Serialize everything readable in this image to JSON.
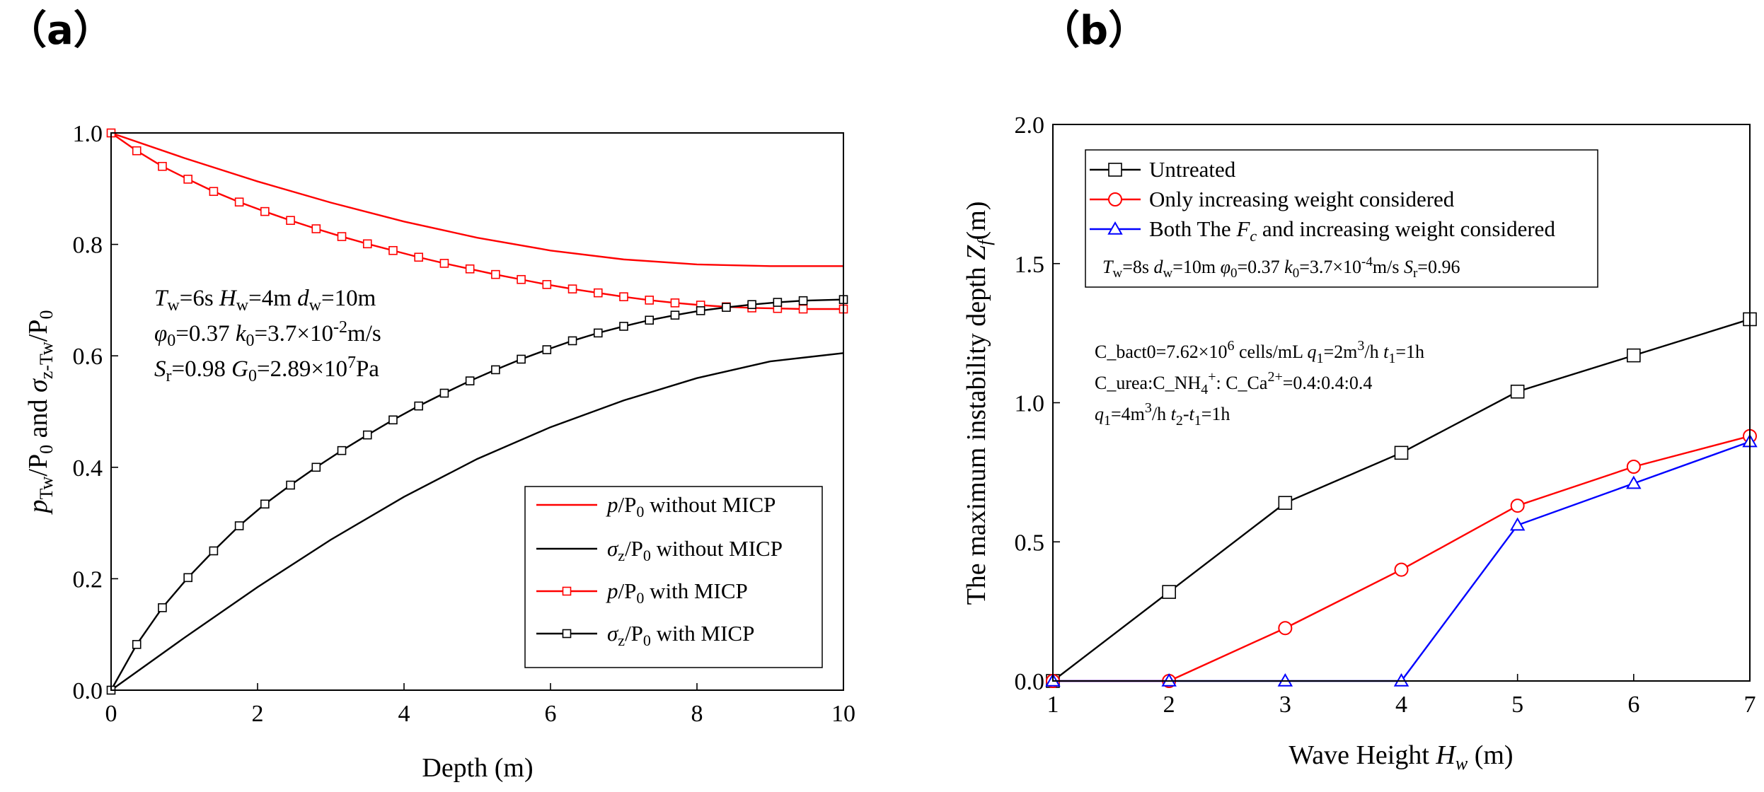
{
  "chart_data": [
    {
      "panel_label": "（a）",
      "type": "line",
      "xlabel": "Depth (m)",
      "ylabel": "p_Tw/P_0 and σ_z-Tw/P_0",
      "xlim": [
        0,
        10
      ],
      "ylim": [
        0,
        1.0
      ],
      "x_ticks": [
        "0",
        "2",
        "4",
        "6",
        "8",
        "10"
      ],
      "y_ticks": [
        "0.0",
        "0.2",
        "0.4",
        "0.6",
        "0.8",
        "1.0"
      ],
      "legend_position": "lower-right",
      "annotation": [
        "T_w=6s   H_w=4m   d_w=10m",
        "φ_0=0.37  k_0=3.7×10^-2 m/s",
        "S_r=0.98  G_0=2.89×10^7 Pa"
      ],
      "series": [
        {
          "name": "p/P0 without MICP",
          "color": "#ff0000",
          "marker": "none",
          "x": [
            0,
            1,
            2,
            3,
            4,
            5,
            6,
            7,
            8,
            9,
            10
          ],
          "values": [
            1.0,
            0.955,
            0.913,
            0.875,
            0.841,
            0.812,
            0.789,
            0.773,
            0.764,
            0.761,
            0.761
          ]
        },
        {
          "name": "σz/P0 without MICP",
          "color": "#000000",
          "marker": "none",
          "x": [
            0,
            1,
            2,
            3,
            4,
            5,
            6,
            7,
            8,
            9,
            10
          ],
          "values": [
            0.0,
            0.094,
            0.185,
            0.27,
            0.347,
            0.415,
            0.472,
            0.52,
            0.56,
            0.59,
            0.605
          ]
        },
        {
          "name": "p/P0 with MICP",
          "color": "#ff0000",
          "marker": "square",
          "x": [
            0,
            0.35,
            0.7,
            1.05,
            1.4,
            1.75,
            2.1,
            2.45,
            2.8,
            3.15,
            3.5,
            3.85,
            4.2,
            4.55,
            4.9,
            5.25,
            5.6,
            5.95,
            6.3,
            6.65,
            7.0,
            7.35,
            7.7,
            8.05,
            8.4,
            8.75,
            9.1,
            9.45,
            10
          ],
          "values": [
            1.0,
            0.968,
            0.94,
            0.917,
            0.895,
            0.876,
            0.859,
            0.843,
            0.828,
            0.814,
            0.801,
            0.789,
            0.777,
            0.766,
            0.756,
            0.746,
            0.737,
            0.728,
            0.72,
            0.713,
            0.706,
            0.7,
            0.695,
            0.691,
            0.688,
            0.686,
            0.685,
            0.684,
            0.684
          ]
        },
        {
          "name": "σz/P0 with MICP",
          "color": "#000000",
          "marker": "square",
          "x": [
            0,
            0.35,
            0.7,
            1.05,
            1.4,
            1.75,
            2.1,
            2.45,
            2.8,
            3.15,
            3.5,
            3.85,
            4.2,
            4.55,
            4.9,
            5.25,
            5.6,
            5.95,
            6.3,
            6.65,
            7.0,
            7.35,
            7.7,
            8.05,
            8.4,
            8.75,
            9.1,
            9.45,
            10
          ],
          "values": [
            0.0,
            0.082,
            0.148,
            0.202,
            0.25,
            0.295,
            0.334,
            0.368,
            0.4,
            0.43,
            0.458,
            0.485,
            0.51,
            0.533,
            0.555,
            0.575,
            0.594,
            0.611,
            0.627,
            0.641,
            0.653,
            0.664,
            0.673,
            0.681,
            0.687,
            0.692,
            0.696,
            0.699,
            0.701
          ]
        }
      ]
    },
    {
      "panel_label": "（b）",
      "type": "line",
      "xlabel": "Wave Height H_w (m)",
      "ylabel": "The maximum instability depth Z_f (m)",
      "xlim": [
        1,
        7
      ],
      "ylim": [
        0,
        2.0
      ],
      "x_ticks": [
        "1",
        "2",
        "3",
        "4",
        "5",
        "6",
        "7"
      ],
      "y_ticks": [
        "0.0",
        "0.5",
        "1.0",
        "1.5",
        "2.0"
      ],
      "legend_position": "top-left",
      "legend_param_line": "T_w=8s  d_w=10m  φ_0=0.37  k_0=3.7×10^-4 m/s  S_r=0.96",
      "annotation": [
        "C_bact0=7.62×10^6 cells/mL   q_1=2m³/h   t_1=1h",
        "C_urea:C_NH4+: C_Ca2+=0.4:0.4:0.4",
        "q_1=4m³/h   t_2-t_1=1h"
      ],
      "series": [
        {
          "name": "Untreated",
          "color": "#000000",
          "marker": "square",
          "x": [
            1,
            2,
            3,
            4,
            5,
            6,
            7
          ],
          "values": [
            0.0,
            0.32,
            0.64,
            0.82,
            1.04,
            1.17,
            1.3
          ]
        },
        {
          "name": "Only increasing weight considered",
          "color": "#ff0000",
          "marker": "circle",
          "x": [
            1,
            2,
            3,
            4,
            5,
            6,
            7
          ],
          "values": [
            0.0,
            0.0,
            0.19,
            0.4,
            0.63,
            0.77,
            0.88
          ]
        },
        {
          "name": "Both The F_c and increasing weight considered",
          "color": "#0000ff",
          "marker": "triangle",
          "x": [
            1,
            2,
            3,
            4,
            5,
            6,
            7
          ],
          "values": [
            0.0,
            0.0,
            0.0,
            0.0,
            0.56,
            0.71,
            0.86
          ]
        }
      ]
    }
  ]
}
